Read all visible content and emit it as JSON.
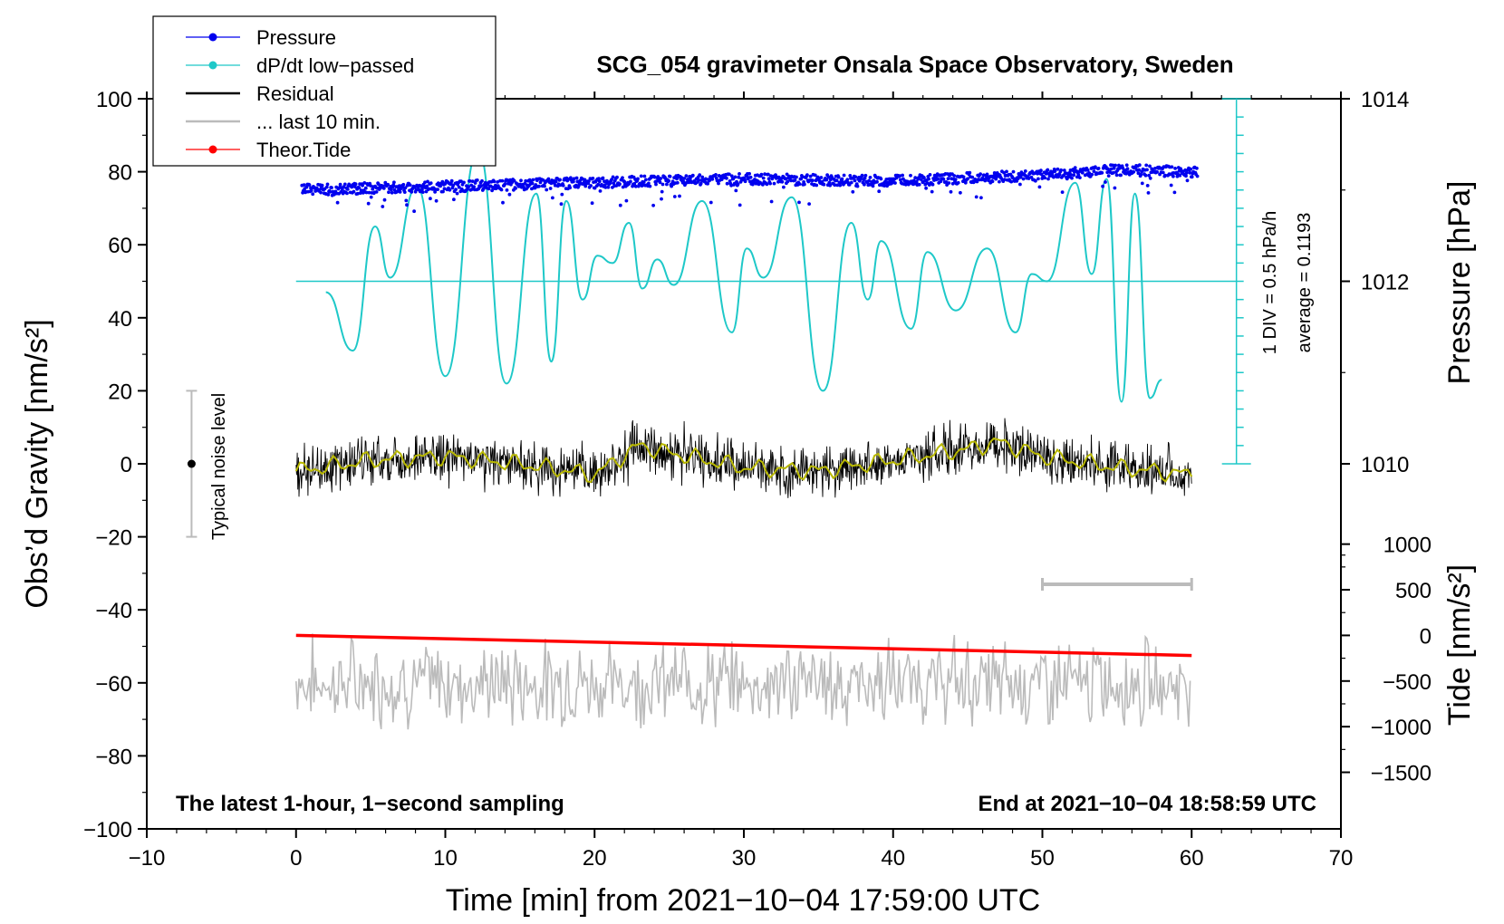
{
  "chart_data": {
    "type": "line",
    "title": "SCG_054 gravimeter Onsala Space Observatory, Sweden",
    "xlabel": "Time [min] from 2021−10−04 17:59:00 UTC",
    "ylabel_left": "Obs’d Gravity [nm/s²]",
    "ylabel_right_pressure": "Pressure [hPa]",
    "ylabel_right_tide": "Tide [nm/s²]",
    "xlim": [
      -10,
      70
    ],
    "ylim": [
      -100,
      100
    ],
    "pressure_ylim": [
      1010,
      1014
    ],
    "tide_ylim": [
      -1500,
      1000
    ],
    "x_ticks": [
      "−10",
      "0",
      "10",
      "20",
      "30",
      "40",
      "50",
      "60",
      "70"
    ],
    "y_ticks": [
      "100",
      "80",
      "60",
      "40",
      "20",
      "0",
      "−20",
      "−40",
      "−60",
      "−80",
      "−100"
    ],
    "pressure_ticks": [
      "1014",
      "1012",
      "1010"
    ],
    "tide_ticks": [
      "1000",
      "500",
      "0",
      "−500",
      "−1000",
      "−1500"
    ],
    "legend": [
      {
        "label": "Pressure",
        "color": "#0000ee",
        "marker": true
      },
      {
        "label": "dP/dt low−passed",
        "color": "#1ec8c8",
        "marker": true
      },
      {
        "label": "Residual",
        "color": "#000000",
        "marker": false
      },
      {
        "label": "... last 10 min.",
        "color": "#bbbbbb",
        "marker": false
      },
      {
        "label": "Theor.Tide",
        "color": "#ff0000",
        "marker": true
      }
    ],
    "annotations": {
      "bottom_left": "The latest 1-hour, 1−second sampling",
      "bottom_right": "End at 2021−10−04 18:58:59 UTC",
      "noise_label": "Typical noise level",
      "div_label": "1 DIV = 0.5 hPa/h",
      "average_label": "average = 0.1193"
    },
    "noise_bar": {
      "x": -7,
      "center": 0,
      "half_range": 20
    },
    "gray_range_bar": {
      "x_start": 50,
      "x_end": 60,
      "y": -33
    },
    "dpdt_scale": {
      "x": 63,
      "y_bottom": 0,
      "y_top": 100,
      "divisions": 20
    },
    "series": [
      {
        "name": "Pressure",
        "color": "#0000ee",
        "unit": "hPa",
        "x": [
          0,
          10,
          20,
          30,
          40,
          50,
          55,
          60
        ],
        "values": [
          1013.0,
          1013.04,
          1013.08,
          1013.12,
          1013.1,
          1013.16,
          1013.22,
          1013.2
        ]
      },
      {
        "name": "dP/dt low-passed",
        "color": "#1ec8c8",
        "unit": "nm/s2 display",
        "x": [
          0,
          1,
          2,
          3.8,
          5.3,
          6.3,
          8.1,
          10.0,
          12.2,
          14.1,
          16.1,
          17.1,
          18.1,
          19.2,
          20.2,
          21.2,
          22.3,
          23.2,
          24.2,
          25.3,
          27.2,
          29.2,
          30.2,
          31.3,
          33.2,
          35.3,
          37.2,
          38.3,
          39.2,
          41.2,
          42.3,
          44.2,
          46.3,
          48.2,
          49.3,
          50.3,
          52.2,
          53.3,
          54.3,
          55.3,
          56.2,
          57.2,
          58.0
        ],
        "values": [
          50,
          50,
          47,
          31,
          65,
          51,
          76,
          24,
          86,
          22,
          74,
          28,
          72,
          45,
          57,
          55,
          66,
          48,
          56,
          49,
          72,
          36,
          59,
          51,
          73,
          20,
          66,
          45,
          61,
          37,
          58,
          42,
          59,
          36,
          52,
          50,
          77,
          52,
          78,
          17,
          74,
          18,
          23
        ]
      },
      {
        "name": "dP/dt average line",
        "color": "#1ec8c8",
        "x": [
          0,
          63
        ],
        "values": [
          50,
          50
        ]
      },
      {
        "name": "Residual",
        "color": "#000000",
        "unit": "nm/s2",
        "x": [
          0,
          5,
          10,
          15,
          20,
          23,
          25,
          30,
          35,
          40,
          45,
          47,
          50,
          55,
          60
        ],
        "values": [
          -2,
          1,
          2,
          0,
          -3,
          5,
          3,
          -1,
          -2,
          1,
          4,
          6,
          2,
          -1,
          -3
        ],
        "noise_amplitude": 10
      },
      {
        "name": "Residual low-passed",
        "color": "#b8b800",
        "unit": "nm/s2",
        "x": [
          0,
          5,
          10,
          15,
          20,
          23,
          25,
          30,
          35,
          40,
          45,
          47,
          50,
          55,
          60
        ],
        "values": [
          -2,
          1,
          2,
          0,
          -3,
          5,
          3,
          -1,
          -2,
          1,
          4,
          6,
          2,
          -1,
          -3
        ]
      },
      {
        "name": "... last 10 min.",
        "color": "#bbbbbb",
        "unit": "nm/s2",
        "x": [
          0,
          60
        ],
        "values": [
          -60,
          -60
        ],
        "amplitude": 8
      },
      {
        "name": "Theor.Tide",
        "color": "#ff0000",
        "unit": "nm/s2 (tide axis)",
        "x": [
          0,
          60
        ],
        "values": [
          5,
          -85
        ]
      }
    ]
  }
}
